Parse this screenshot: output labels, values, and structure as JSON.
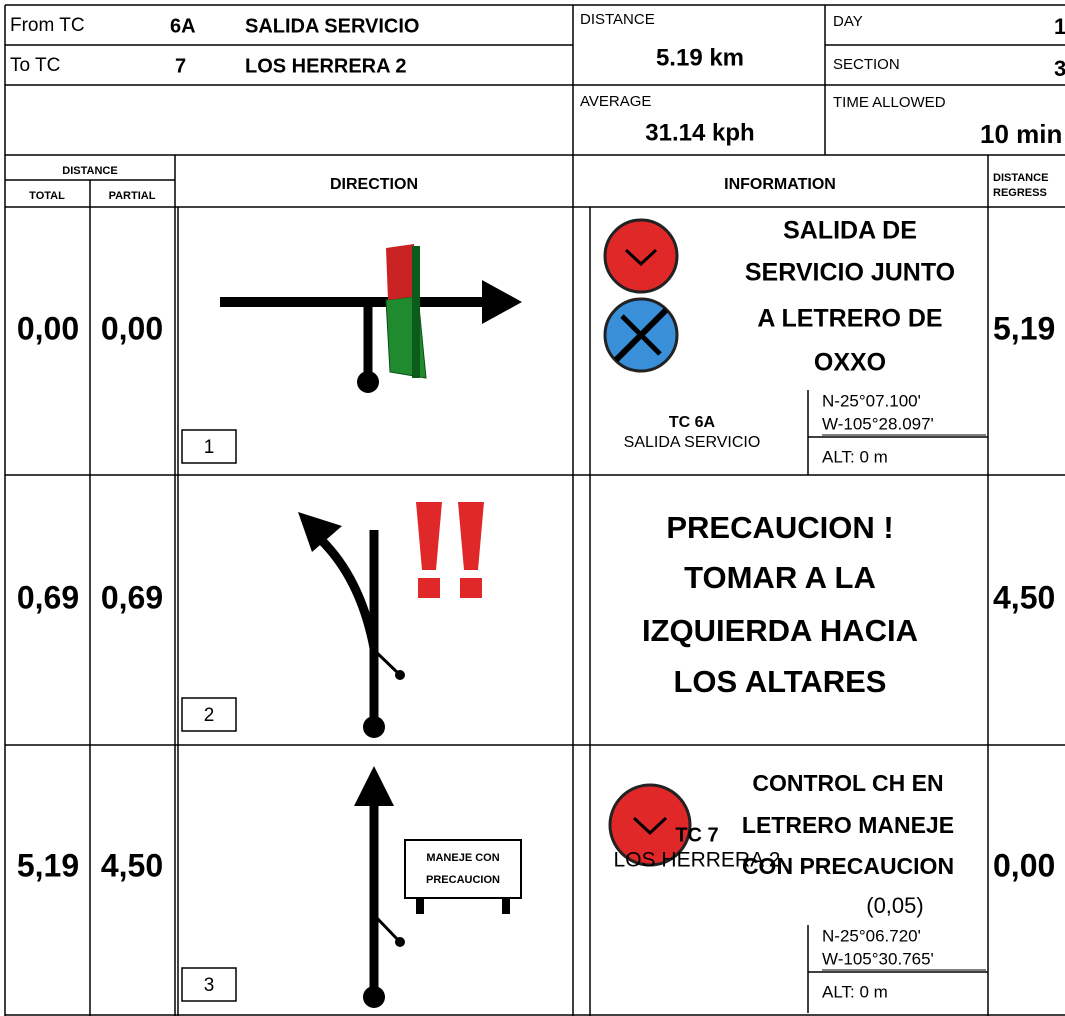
{
  "header": {
    "from_label": "From TC",
    "from_tc": "6A",
    "from_name": "SALIDA SERVICIO",
    "to_label": "To TC",
    "to_tc": "7",
    "to_name": "LOS HERRERA 2",
    "distance_label": "DISTANCE",
    "distance": "5.19 km",
    "day_label": "DAY",
    "day": "1",
    "section_label": "SECTION",
    "section": "3",
    "average_label": "AVERAGE",
    "average": "31.14 kph",
    "time_allowed_label": "TIME ALLOWED",
    "time_allowed": "10 min"
  },
  "columns": {
    "distance": "DISTANCE",
    "total": "TOTAL",
    "partial": "PARTIAL",
    "direction": "DIRECTION",
    "information": "INFORMATION",
    "regress_1": "DISTANCE",
    "regress_2": "REGRESS"
  },
  "rows": [
    {
      "total": "0,00",
      "partial": "0,00",
      "number": "1",
      "info_lines": [
        "SALIDA DE",
        "SERVICIO JUNTO",
        "A LETRERO DE",
        "OXXO"
      ],
      "tc": "TC 6A",
      "tc_name": "SALIDA SERVICIO",
      "lat": "N-25°07.100'",
      "lon": "W-105°28.097'",
      "alt": "ALT: 0 m",
      "regress": "5,19"
    },
    {
      "total": "0,69",
      "partial": "0,69",
      "number": "2",
      "info_lines": [
        "PRECAUCION !",
        "TOMAR A LA",
        "IZQUIERDA HACIA",
        "LOS ALTARES"
      ],
      "regress": "4,50"
    },
    {
      "total": "5,19",
      "partial": "4,50",
      "number": "3",
      "info_lines": [
        "CONTROL CH EN",
        "LETRERO MANEJE",
        "CON PRECAUCION"
      ],
      "note": "(0,05)",
      "sign_lines": [
        "MANEJE CON",
        "PRECAUCION"
      ],
      "tc": "TC 7",
      "tc_name": "LOS HERRERA 2",
      "lat": "N-25°06.720'",
      "lon": "W-105°30.765'",
      "alt": "ALT: 0 m",
      "regress": "0,00"
    }
  ]
}
